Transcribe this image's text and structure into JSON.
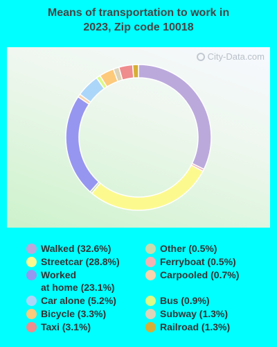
{
  "title_line1": "Means of transportation to work in",
  "title_line2": "2023, Zip code 10018",
  "watermark": "City-Data.com",
  "chart_data": {
    "type": "pie",
    "donut": true,
    "title": "Means of transportation to work in 2023, Zip code 10018",
    "legend_position": "bottom",
    "slices": [
      {
        "label": "Walked (32.6%)",
        "value": 32.6,
        "color": "#bba9dc"
      },
      {
        "label": "Ferryboat (0.5%)",
        "value": 0.5,
        "color": "#f4b3b3"
      },
      {
        "label": "Streetcar (28.8%)",
        "value": 28.8,
        "color": "#fcfa8f"
      },
      {
        "label": "Other (0.5%)",
        "value": 0.5,
        "color": "#c9dcad"
      },
      {
        "label": "Worked\nat home (23.1%)",
        "value": 23.1,
        "color": "#9696f0"
      },
      {
        "label": "Carpooled (0.7%)",
        "value": 0.7,
        "color": "#f9d3ab"
      },
      {
        "label": "Car alone (5.2%)",
        "value": 5.2,
        "color": "#acd6f9"
      },
      {
        "label": "Bus (0.9%)",
        "value": 0.9,
        "color": "#dbfa86"
      },
      {
        "label": "Bicycle (3.3%)",
        "value": 3.3,
        "color": "#fdc97b"
      },
      {
        "label": "Subway (1.3%)",
        "value": 1.3,
        "color": "#ddd4b9"
      },
      {
        "label": "Taxi (3.1%)",
        "value": 3.1,
        "color": "#ef8c8d"
      },
      {
        "label": "Railroad (1.3%)",
        "value": 1.3,
        "color": "#d5af36"
      }
    ],
    "legend_order": [
      0,
      2,
      4,
      6,
      8,
      10,
      3,
      1,
      5,
      7,
      9,
      11
    ]
  }
}
